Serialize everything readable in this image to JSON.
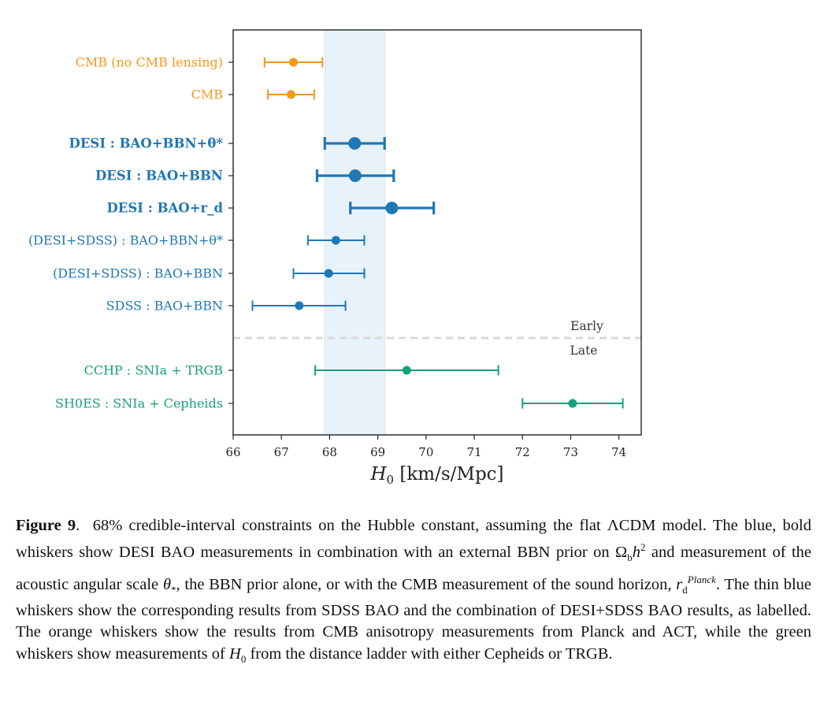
{
  "chart_data": {
    "type": "errorbar",
    "xlabel": "H0 [km/s/Mpc]",
    "xlim": [
      66,
      74.3
    ],
    "xticks": [
      66,
      67,
      68,
      69,
      70,
      71,
      72,
      73,
      74
    ],
    "shaded_band": {
      "x_from": 67.9,
      "x_to": 69.15,
      "color": "#e8f2fa"
    },
    "divider": {
      "label_above": "Early",
      "label_below": "Late"
    },
    "colors": {
      "orange": "#f5961e",
      "blue": "#1f77b4",
      "green": "#17a07a"
    },
    "series": [
      {
        "label": "CMB (no CMB lensing)",
        "value": 67.25,
        "low": 66.65,
        "high": 67.85,
        "color": "orange",
        "bold": false,
        "group": 0
      },
      {
        "label": "CMB",
        "value": 67.2,
        "low": 66.72,
        "high": 67.68,
        "color": "orange",
        "bold": false,
        "group": 0
      },
      {
        "label": "DESI : BAO+BBN+θ*",
        "value": 68.52,
        "low": 67.9,
        "high": 69.14,
        "color": "blue",
        "bold": true,
        "group": 1
      },
      {
        "label": "DESI : BAO+BBN",
        "value": 68.53,
        "low": 67.74,
        "high": 69.33,
        "color": "blue",
        "bold": true,
        "group": 1
      },
      {
        "label": "DESI : BAO+r_d",
        "value": 69.29,
        "low": 68.43,
        "high": 70.16,
        "color": "blue",
        "bold": true,
        "group": 1
      },
      {
        "label": "(DESI+SDSS) : BAO+BBN+θ*",
        "value": 68.13,
        "low": 67.55,
        "high": 68.72,
        "color": "blue",
        "bold": false,
        "group": 1
      },
      {
        "label": "(DESI+SDSS) : BAO+BBN",
        "value": 67.98,
        "low": 67.25,
        "high": 68.72,
        "color": "blue",
        "bold": false,
        "group": 1
      },
      {
        "label": "SDSS : BAO+BBN",
        "value": 67.37,
        "low": 66.4,
        "high": 68.33,
        "color": "blue",
        "bold": false,
        "group": 1
      },
      {
        "label": "CCHP : SNIa + TRGB",
        "value": 69.6,
        "low": 67.7,
        "high": 71.5,
        "color": "green",
        "bold": false,
        "group": 2
      },
      {
        "label": "SH0ES : SNIa + Cepheids",
        "value": 73.04,
        "low": 72.0,
        "high": 74.08,
        "color": "green",
        "bold": false,
        "group": 2
      }
    ]
  },
  "caption": {
    "label": "Figure 9",
    "text": "68% credible-interval constraints on the Hubble constant, assuming the flat ΛCDM model. The blue, bold whiskers show DESI BAO measurements in combination with an external BBN prior on Ωbh² and measurement of the acoustic angular scale θ*, the BBN prior alone, or with the CMB measurement of the sound horizon, rd^Planck. The thin blue whiskers show the corresponding results from SDSS BAO and the combination of DESI+SDSS BAO results, as labelled. The orange whiskers show the results from CMB anisotropy measurements from Planck and ACT, while the green whiskers show measurements of H0 from the distance ladder with either Cepheids or TRGB."
  }
}
